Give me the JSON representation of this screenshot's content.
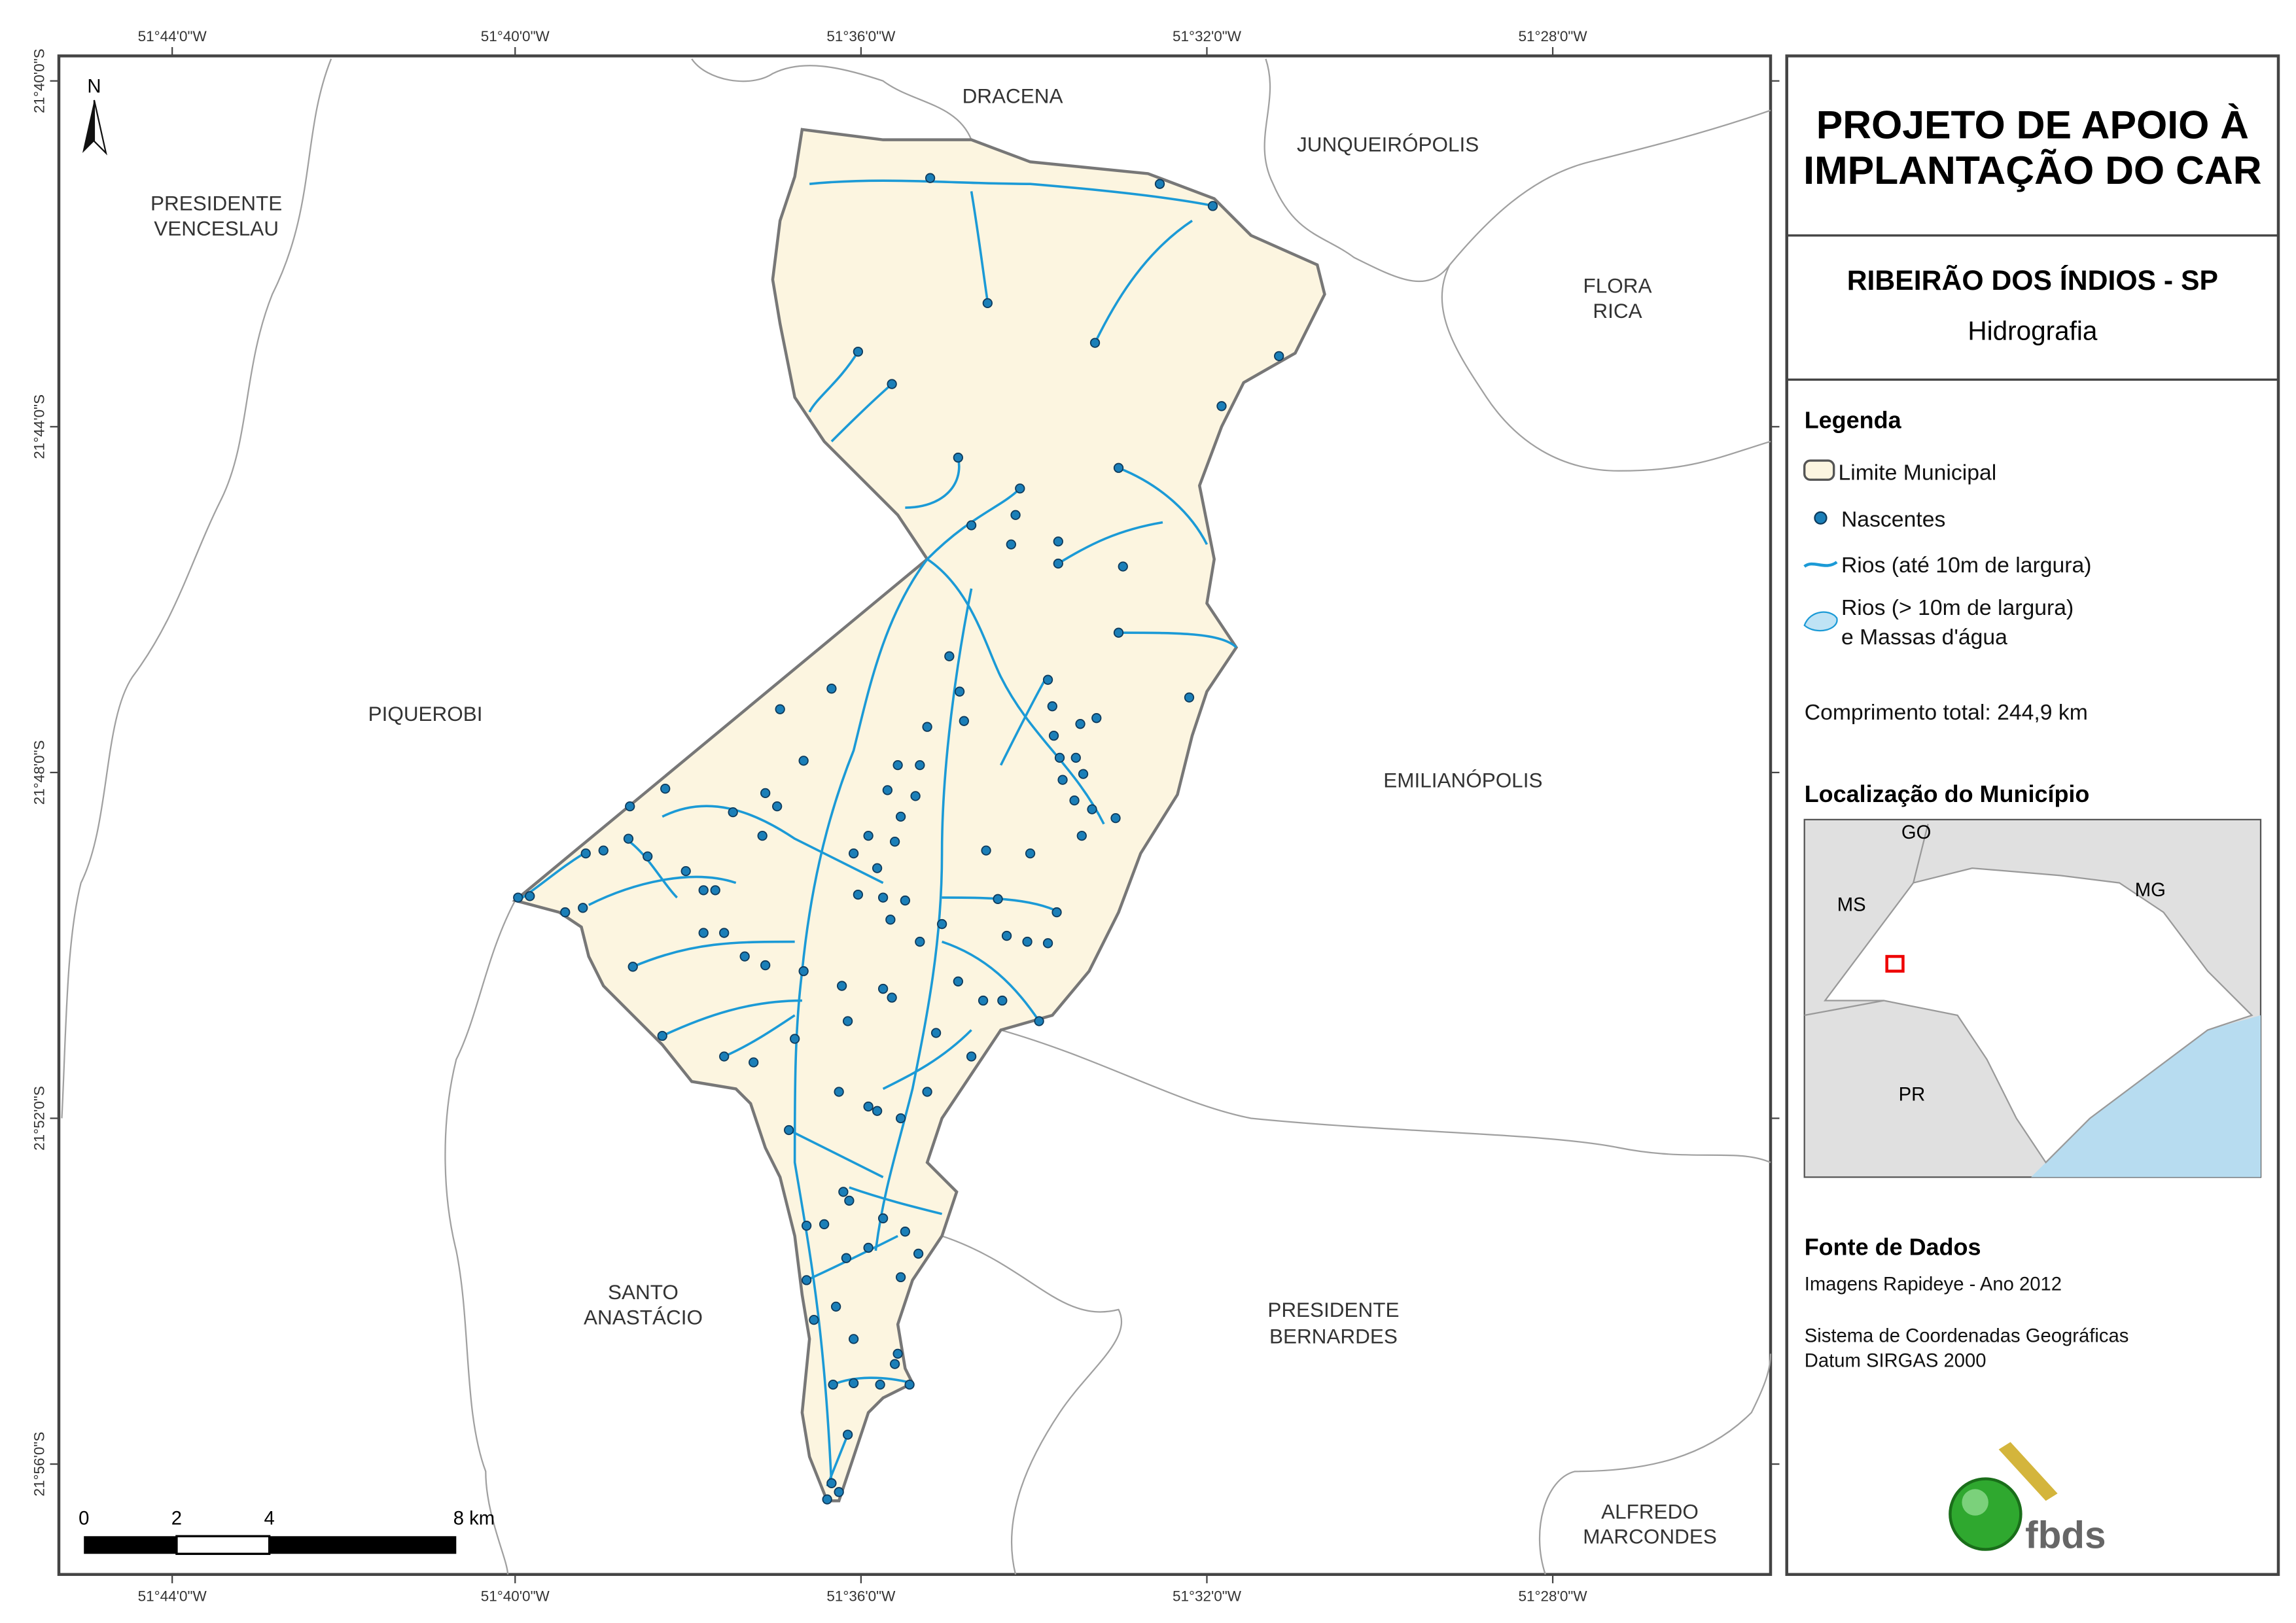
{
  "map": {
    "longitudes": [
      "51°44'0\"W",
      "51°40'0\"W",
      "51°36'0\"W",
      "51°32'0\"W",
      "51°28'0\"W"
    ],
    "latitudes": [
      "21°40'0\"S",
      "21°44'0\"S",
      "21°48'0\"S",
      "21°52'0\"S",
      "21°56'0\"S"
    ],
    "north": "N",
    "neighbors": {
      "dracena": "DRACENA",
      "junqueiropolis": "JUNQUEIRÓPOLIS",
      "venceslau": [
        "PRESIDENTE",
        "VENCESLAU"
      ],
      "flora_rica": [
        "FLORA",
        "RICA"
      ],
      "piquerobi": "PIQUEROBI",
      "emilianopolis": "EMILIANÓPOLIS",
      "santo_anastacio": [
        "SANTO",
        "ANASTÁCIO"
      ],
      "bernardes": [
        "PRESIDENTE",
        "BERNARDES"
      ],
      "alfredo_marcondes": [
        "ALFREDO",
        "MARCONDES"
      ]
    },
    "scale": [
      "0",
      "2",
      "4",
      "8 km"
    ]
  },
  "panel": {
    "title": [
      "PROJETO DE APOIO À",
      "IMPLANTAÇÃO DO CAR"
    ],
    "subtitle": "RIBEIRÃO DOS ÍNDIOS - SP",
    "theme": "Hidrografia",
    "legend": {
      "heading": "Legenda",
      "items": [
        "Limite Municipal",
        "Nascentes",
        "Rios (até 10m de largura)",
        "Rios (> 10m de largura)",
        "e Massas d'água"
      ],
      "total": "Comprimento total:  244,9 km"
    },
    "location": {
      "heading": "Localização do Município",
      "labels": [
        "GO",
        "MS",
        "MG",
        "PR"
      ]
    },
    "sources": {
      "heading": "Fonte de Dados",
      "lines": [
        "Imagens Rapideye - Ano 2012",
        "Sistema de Coordenadas Geográficas",
        "Datum SIRGAS 2000"
      ]
    },
    "logo": "fbds"
  }
}
